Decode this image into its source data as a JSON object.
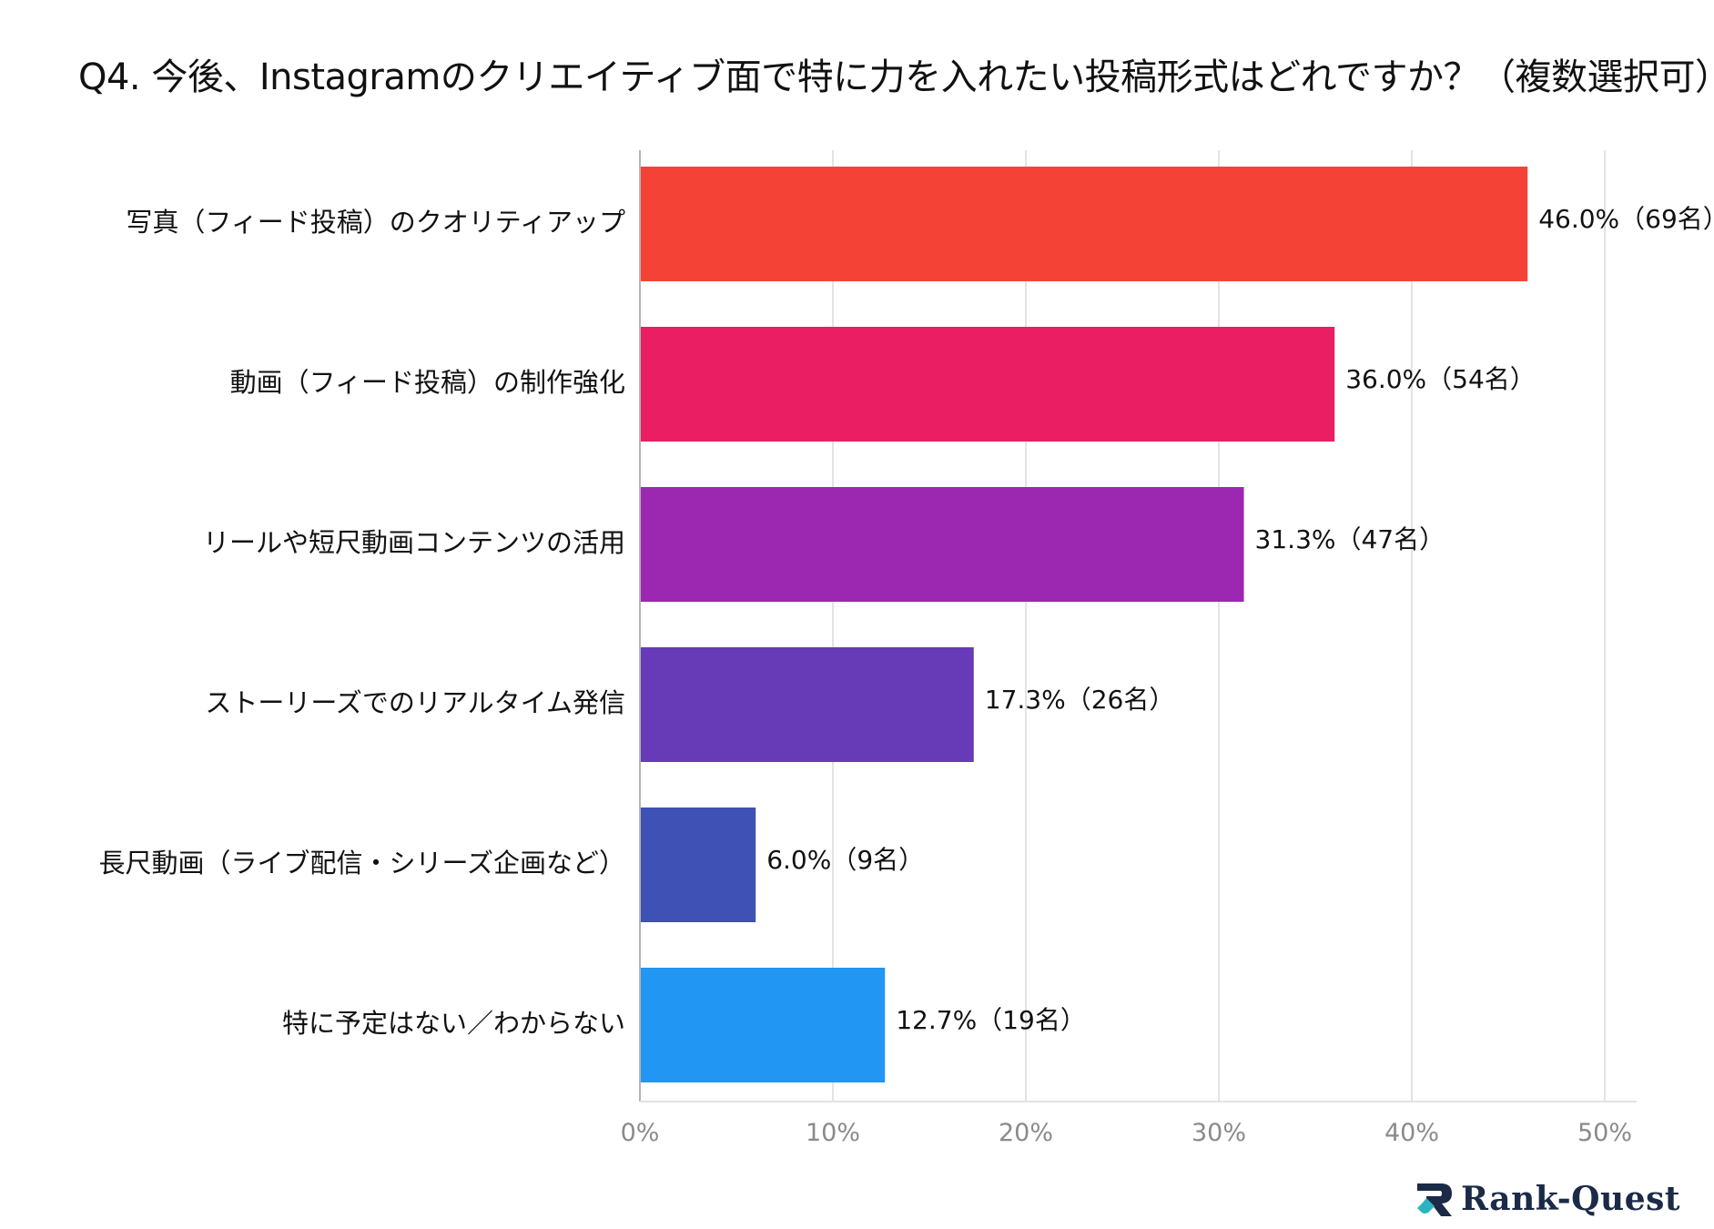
{
  "title": "Q4. 今後、Instagramのクリエイティブ面で特に力を入れたい投稿形式はどれですか？（複数選択可）",
  "brand": {
    "name": "Rank-Quest",
    "logo_icon": "rank-quest-logo-icon",
    "navy": "#1b2a47",
    "teal": "#2bb3c0"
  },
  "chart_data": {
    "type": "bar",
    "orientation": "horizontal",
    "title": "Q4. 今後、Instagramのクリエイティブ面で特に力を入れたい投稿形式はどれですか？（複数選択可）",
    "xlabel": "",
    "ylabel": "",
    "xlim": [
      0,
      50
    ],
    "grid": true,
    "ticks": [
      {
        "value": 0,
        "label": "0%"
      },
      {
        "value": 10,
        "label": "10%"
      },
      {
        "value": 20,
        "label": "20%"
      },
      {
        "value": 30,
        "label": "30%"
      },
      {
        "value": 40,
        "label": "40%"
      },
      {
        "value": 50,
        "label": "50%"
      }
    ],
    "categories": [
      "写真（フィード投稿）のクオリティアップ",
      "動画（フィード投稿）の制作強化",
      "リールや短尺動画コンテンツの活用",
      "ストーリーズでのリアルタイム発信",
      "長尺動画（ライブ配信・シリーズ企画など）",
      "特に予定はない／わからない"
    ],
    "values": [
      46.0,
      36.0,
      31.3,
      17.3,
      6.0,
      12.7
    ],
    "data_labels": [
      "46.0%（69名）",
      "36.0%（54名）",
      "31.3%（47名）",
      "17.3%（26名）",
      "6.0%（9名）",
      "12.7%（19名）"
    ],
    "colors": [
      "#f44336",
      "#e91e63",
      "#9c27b0",
      "#673ab7",
      "#3f51b5",
      "#2196f3"
    ],
    "gridline_color": "#e3e3e3",
    "axis_color": "#b5b5b5"
  }
}
